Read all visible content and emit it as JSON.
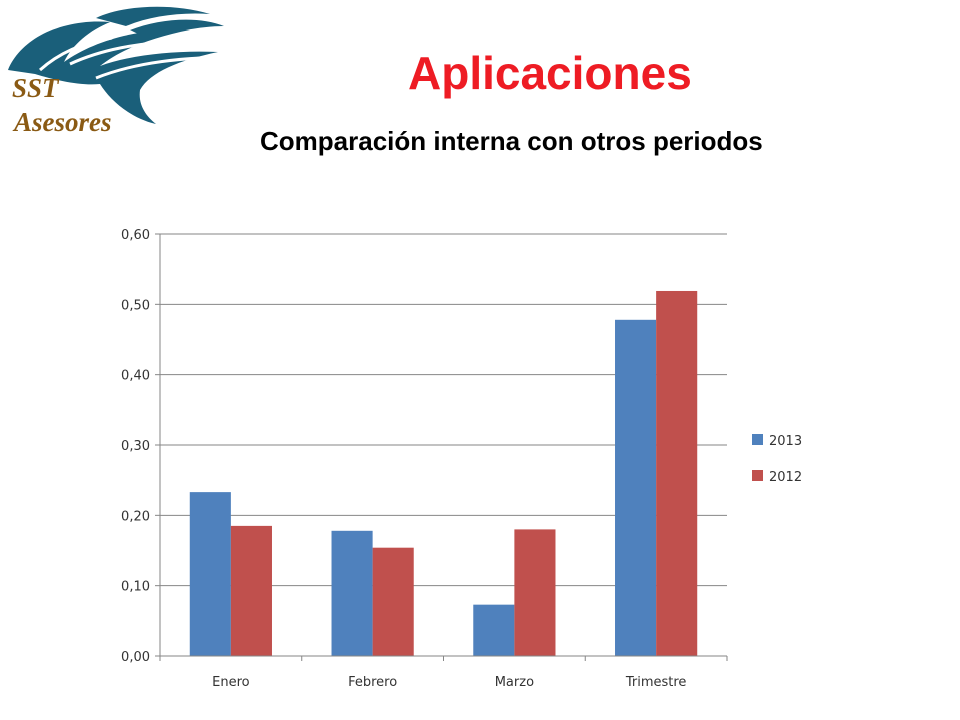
{
  "logo": {
    "line1": "SST",
    "line2": "Asesores"
  },
  "title": "Aplicaciones",
  "subtitle": "Comparación interna con otros periodos",
  "colors": {
    "title": "#ee1c24",
    "logo_teal": "#1a5f7a",
    "logo_text": "#8a5a14",
    "series_2013": "#4f81bd",
    "series_2012": "#c0504d"
  },
  "chart_data": {
    "type": "bar",
    "categories": [
      "Enero",
      "Febrero",
      "Marzo",
      "Trimestre"
    ],
    "series": [
      {
        "name": "2013",
        "values": [
          0.233,
          0.178,
          0.073,
          0.478
        ]
      },
      {
        "name": "2012",
        "values": [
          0.185,
          0.154,
          0.18,
          0.519
        ]
      }
    ],
    "ylim": [
      0,
      0.6
    ],
    "yticks": [
      "0,00",
      "0,10",
      "0,20",
      "0,30",
      "0,40",
      "0,50",
      "0,60"
    ],
    "grid": true,
    "legend": "right"
  }
}
